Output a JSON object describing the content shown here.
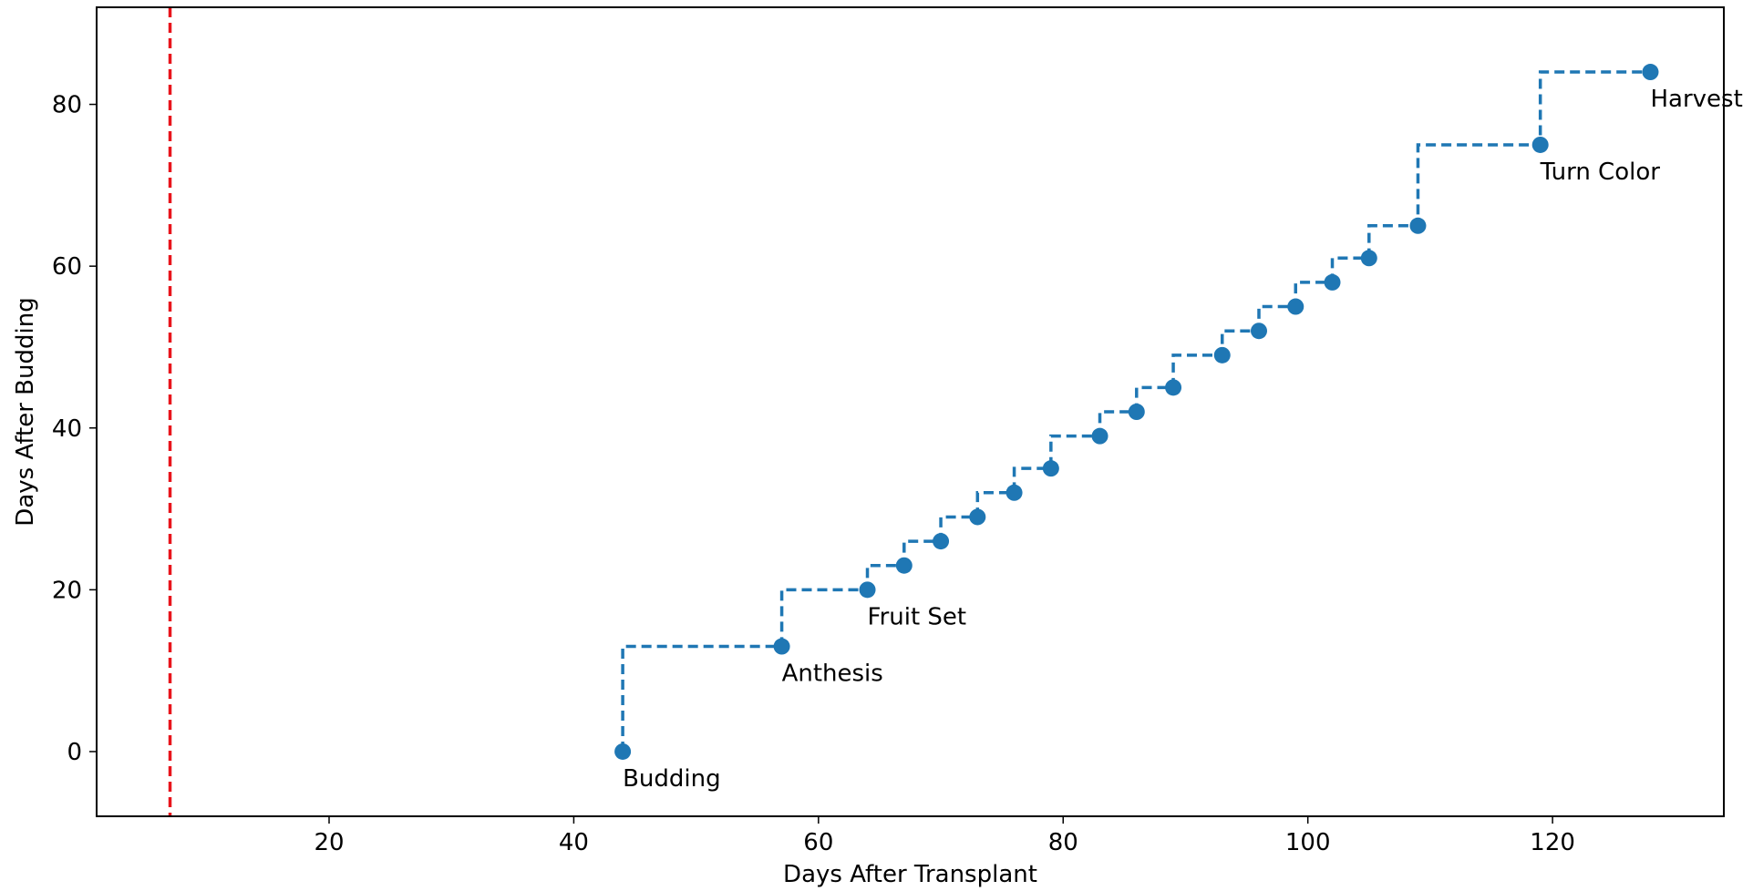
{
  "chart_data": {
    "type": "line",
    "title": "",
    "xlabel": "Days After Transplant",
    "ylabel": "Days After Budding",
    "xlim": [
      1,
      134
    ],
    "ylim": [
      -8,
      92
    ],
    "xticks": [
      20,
      40,
      60,
      80,
      100,
      120
    ],
    "yticks": [
      0,
      20,
      40,
      60,
      80
    ],
    "grid": false,
    "step_style": "pre",
    "colors": {
      "series": "#1f77b4",
      "reference_line": "#e8141c"
    },
    "reference_line": {
      "x": 7,
      "style": "dashed"
    },
    "series": [
      {
        "x": [
          44,
          57,
          64,
          67,
          70,
          73,
          76,
          79,
          83,
          86,
          89,
          93,
          96,
          99,
          102,
          105,
          109,
          119,
          128
        ],
        "y": [
          0,
          13,
          20,
          23,
          26,
          29,
          32,
          35,
          39,
          42,
          45,
          49,
          52,
          55,
          58,
          61,
          65,
          75,
          84
        ]
      }
    ],
    "annotations": [
      {
        "text": "Budding",
        "x": 44,
        "y": 0
      },
      {
        "text": "Anthesis",
        "x": 57,
        "y": 13
      },
      {
        "text": "Fruit Set",
        "x": 64,
        "y": 20
      },
      {
        "text": "Turn Color",
        "x": 119,
        "y": 75
      },
      {
        "text": "Harvest",
        "x": 128,
        "y": 84
      }
    ]
  }
}
